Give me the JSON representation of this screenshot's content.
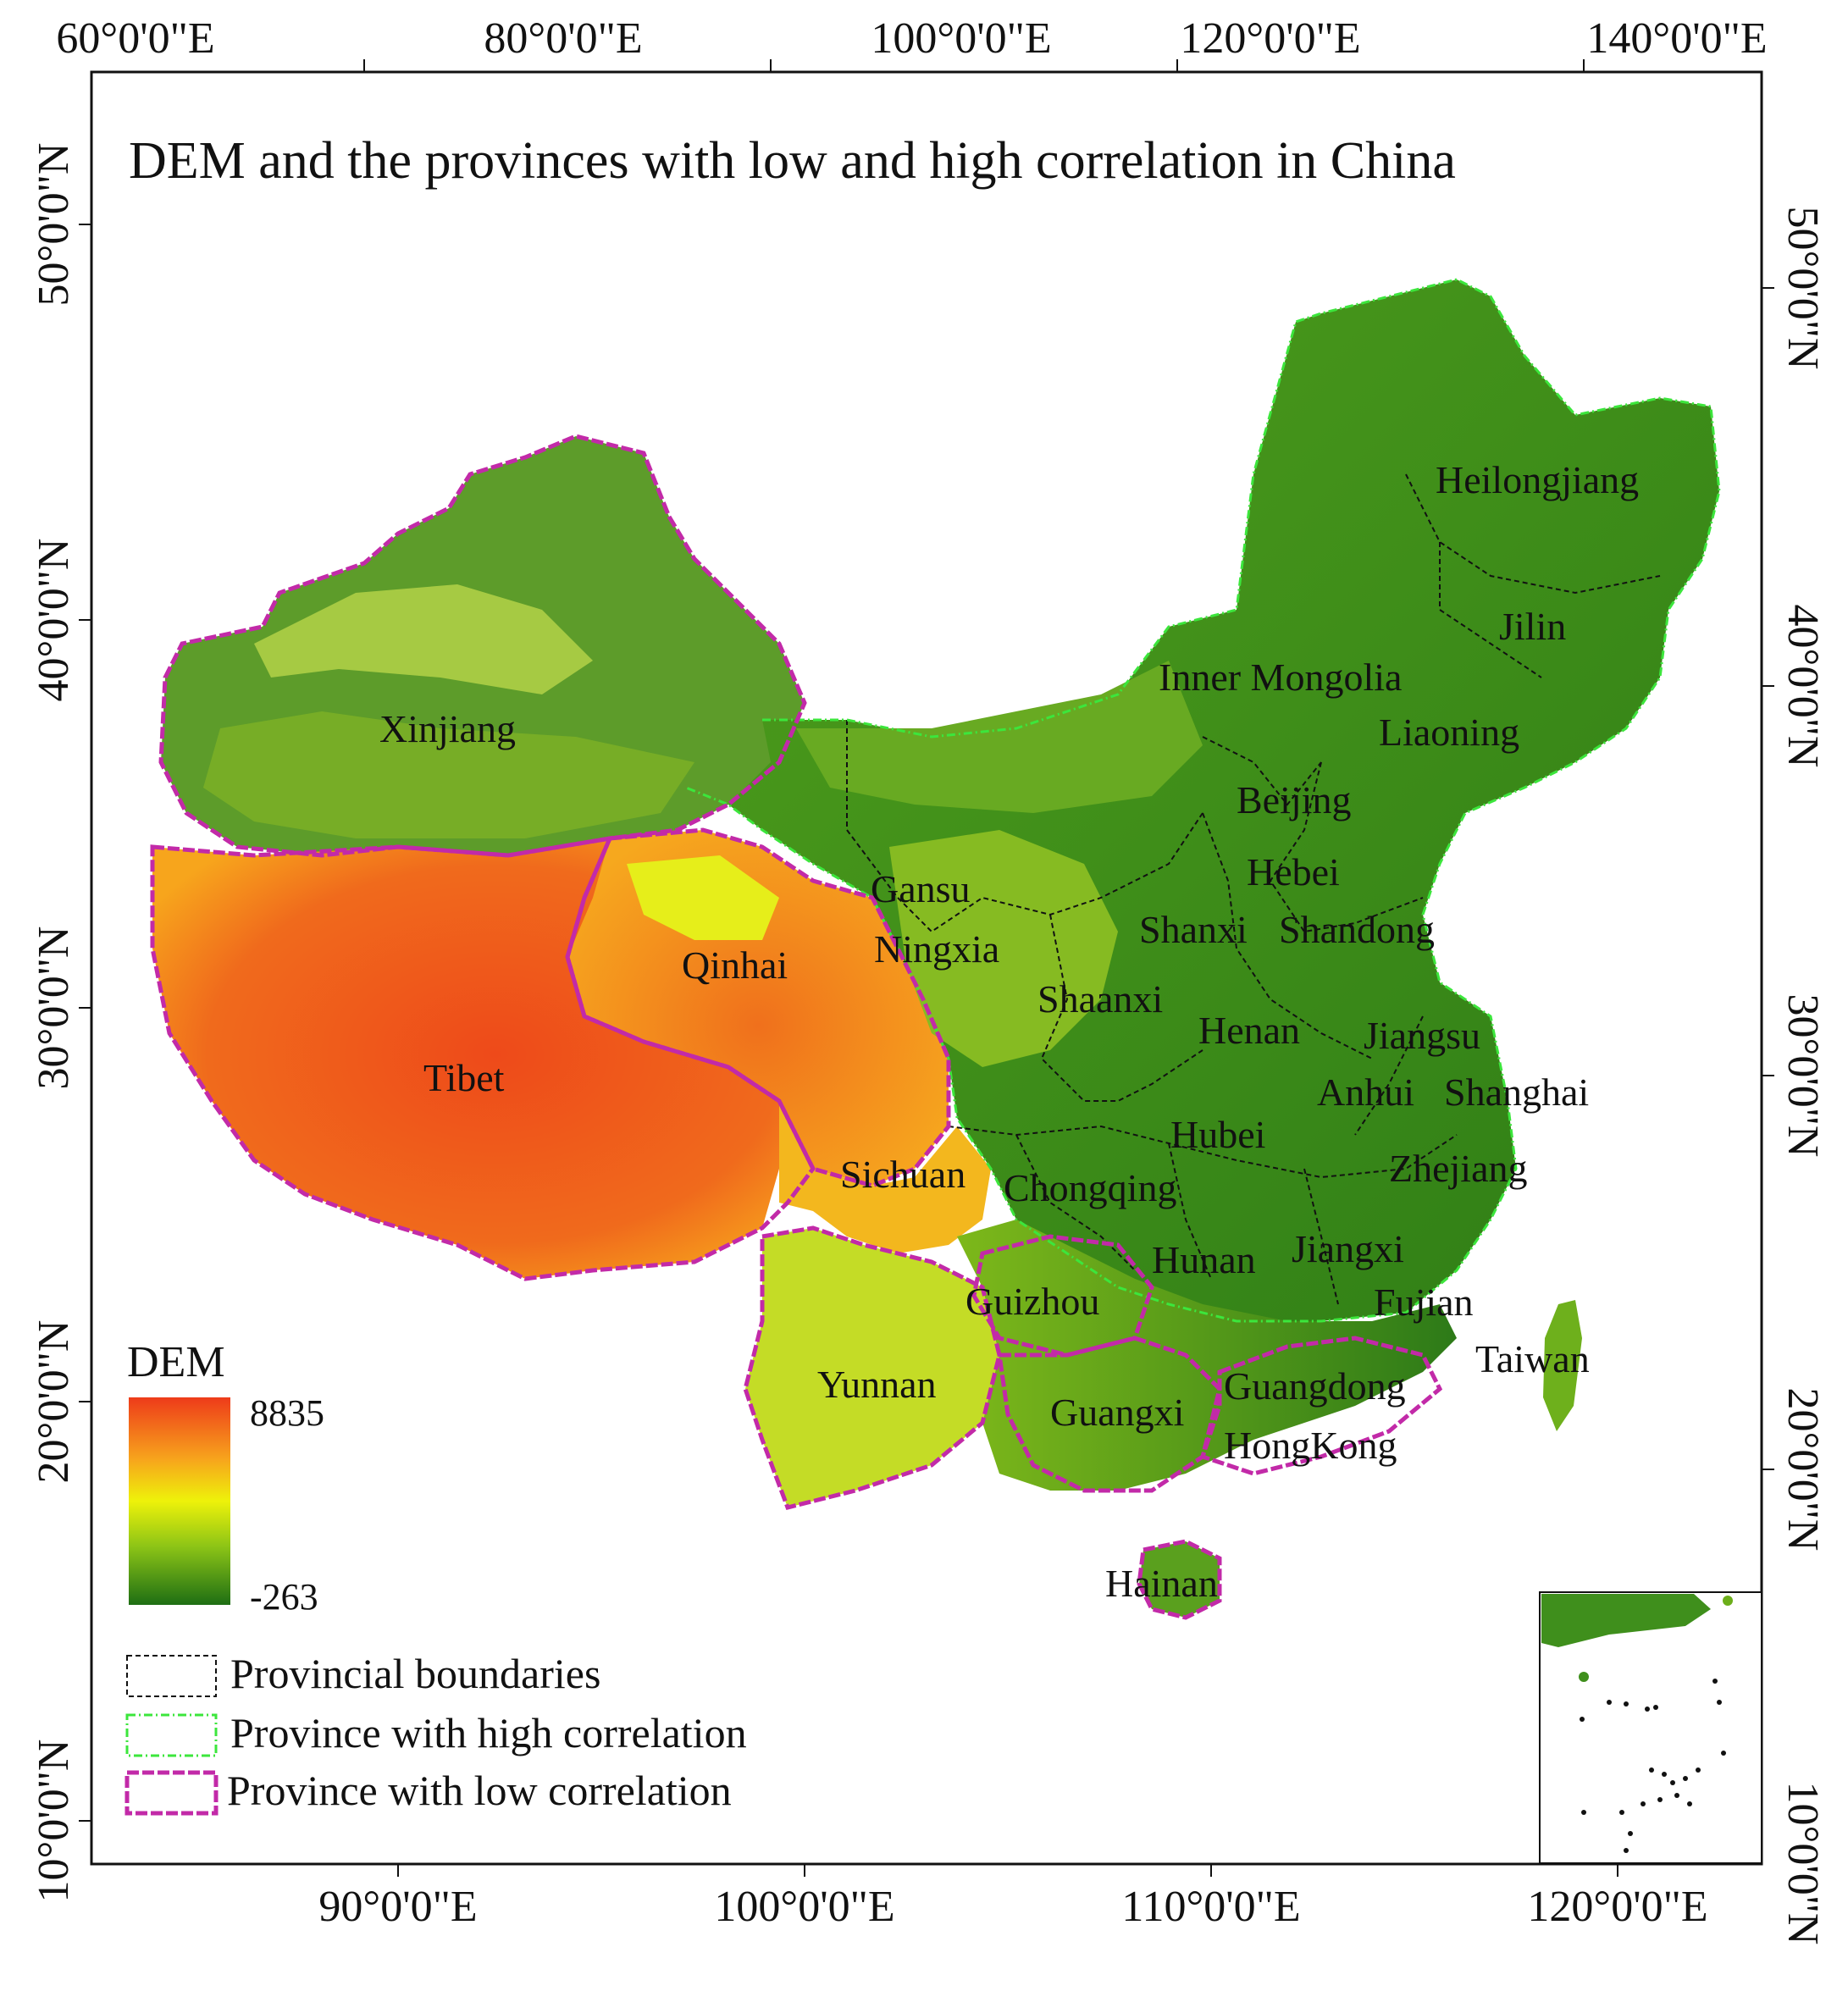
{
  "title": "DEM and the provinces with low and high correlation in China",
  "graticule": {
    "top": [
      "60°0'0\"E",
      "80°0'0\"E",
      "100°0'0\"E",
      "120°0'0\"E",
      "140°0'0\"E"
    ],
    "bottom": [
      "90°0'0\"E",
      "100°0'0\"E",
      "110°0'0\"E",
      "120°0'0\"E"
    ],
    "left": [
      "50°0'0\"N",
      "40°0'0\"N",
      "30°0'0\"N",
      "20°0'0\"N",
      "10°0'0\"N"
    ],
    "right": [
      "50°0'0\"N",
      "40°0'0\"N",
      "30°0'0\"N",
      "20°0'0\"N",
      "10°0'0\"N"
    ]
  },
  "provinces": {
    "xinjiang": "Xinjiang",
    "tibet": "Tibet",
    "qinhai": "Qinhai",
    "gansu": "Gansu",
    "ningxia": "Ningxia",
    "inner_mongolia": "Inner Mongolia",
    "heilongjiang": "Heilongjiang",
    "jilin": "Jilin",
    "liaoning": "Liaoning",
    "beijing": "Beijing",
    "hebei": "Hebei",
    "shanxi": "Shanxi",
    "shandong": "Shandong",
    "shaanxi": "Shaanxi",
    "henan": "Henan",
    "jiangsu": "Jiangsu",
    "anhui": "Anhui",
    "shanghai": "Shanghai",
    "hubei": "Hubei",
    "zhejiang": "Zhejiang",
    "sichuan": "Sichuan",
    "chongqing": "Chongqing",
    "hunan": "Hunan",
    "jiangxi": "Jiangxi",
    "guizhou": "Guizhou",
    "fujian": "Fujian",
    "taiwan": "Taiwan",
    "yunnan": "Yunnan",
    "guangxi": "Guangxi",
    "guangdong": "Guangdong",
    "hongkong": "HongKong",
    "hainan": "Hainan"
  },
  "dem_legend": {
    "title": "DEM",
    "max": "8835",
    "min": "-263"
  },
  "boundary_legend": {
    "provincial": "Provincial boundaries",
    "high": "Province with high correlation",
    "low": "Province with low correlation"
  },
  "colors": {
    "dem_high": "#ee3b1a",
    "dem_mid_high": "#f7a51c",
    "dem_mid": "#eef20a",
    "dem_mid_low": "#8cc416",
    "dem_low": "#1e6e14",
    "high_boundary": "#3ce63c",
    "low_boundary": "#c22aa8",
    "provincial_boundary": "#111111"
  }
}
